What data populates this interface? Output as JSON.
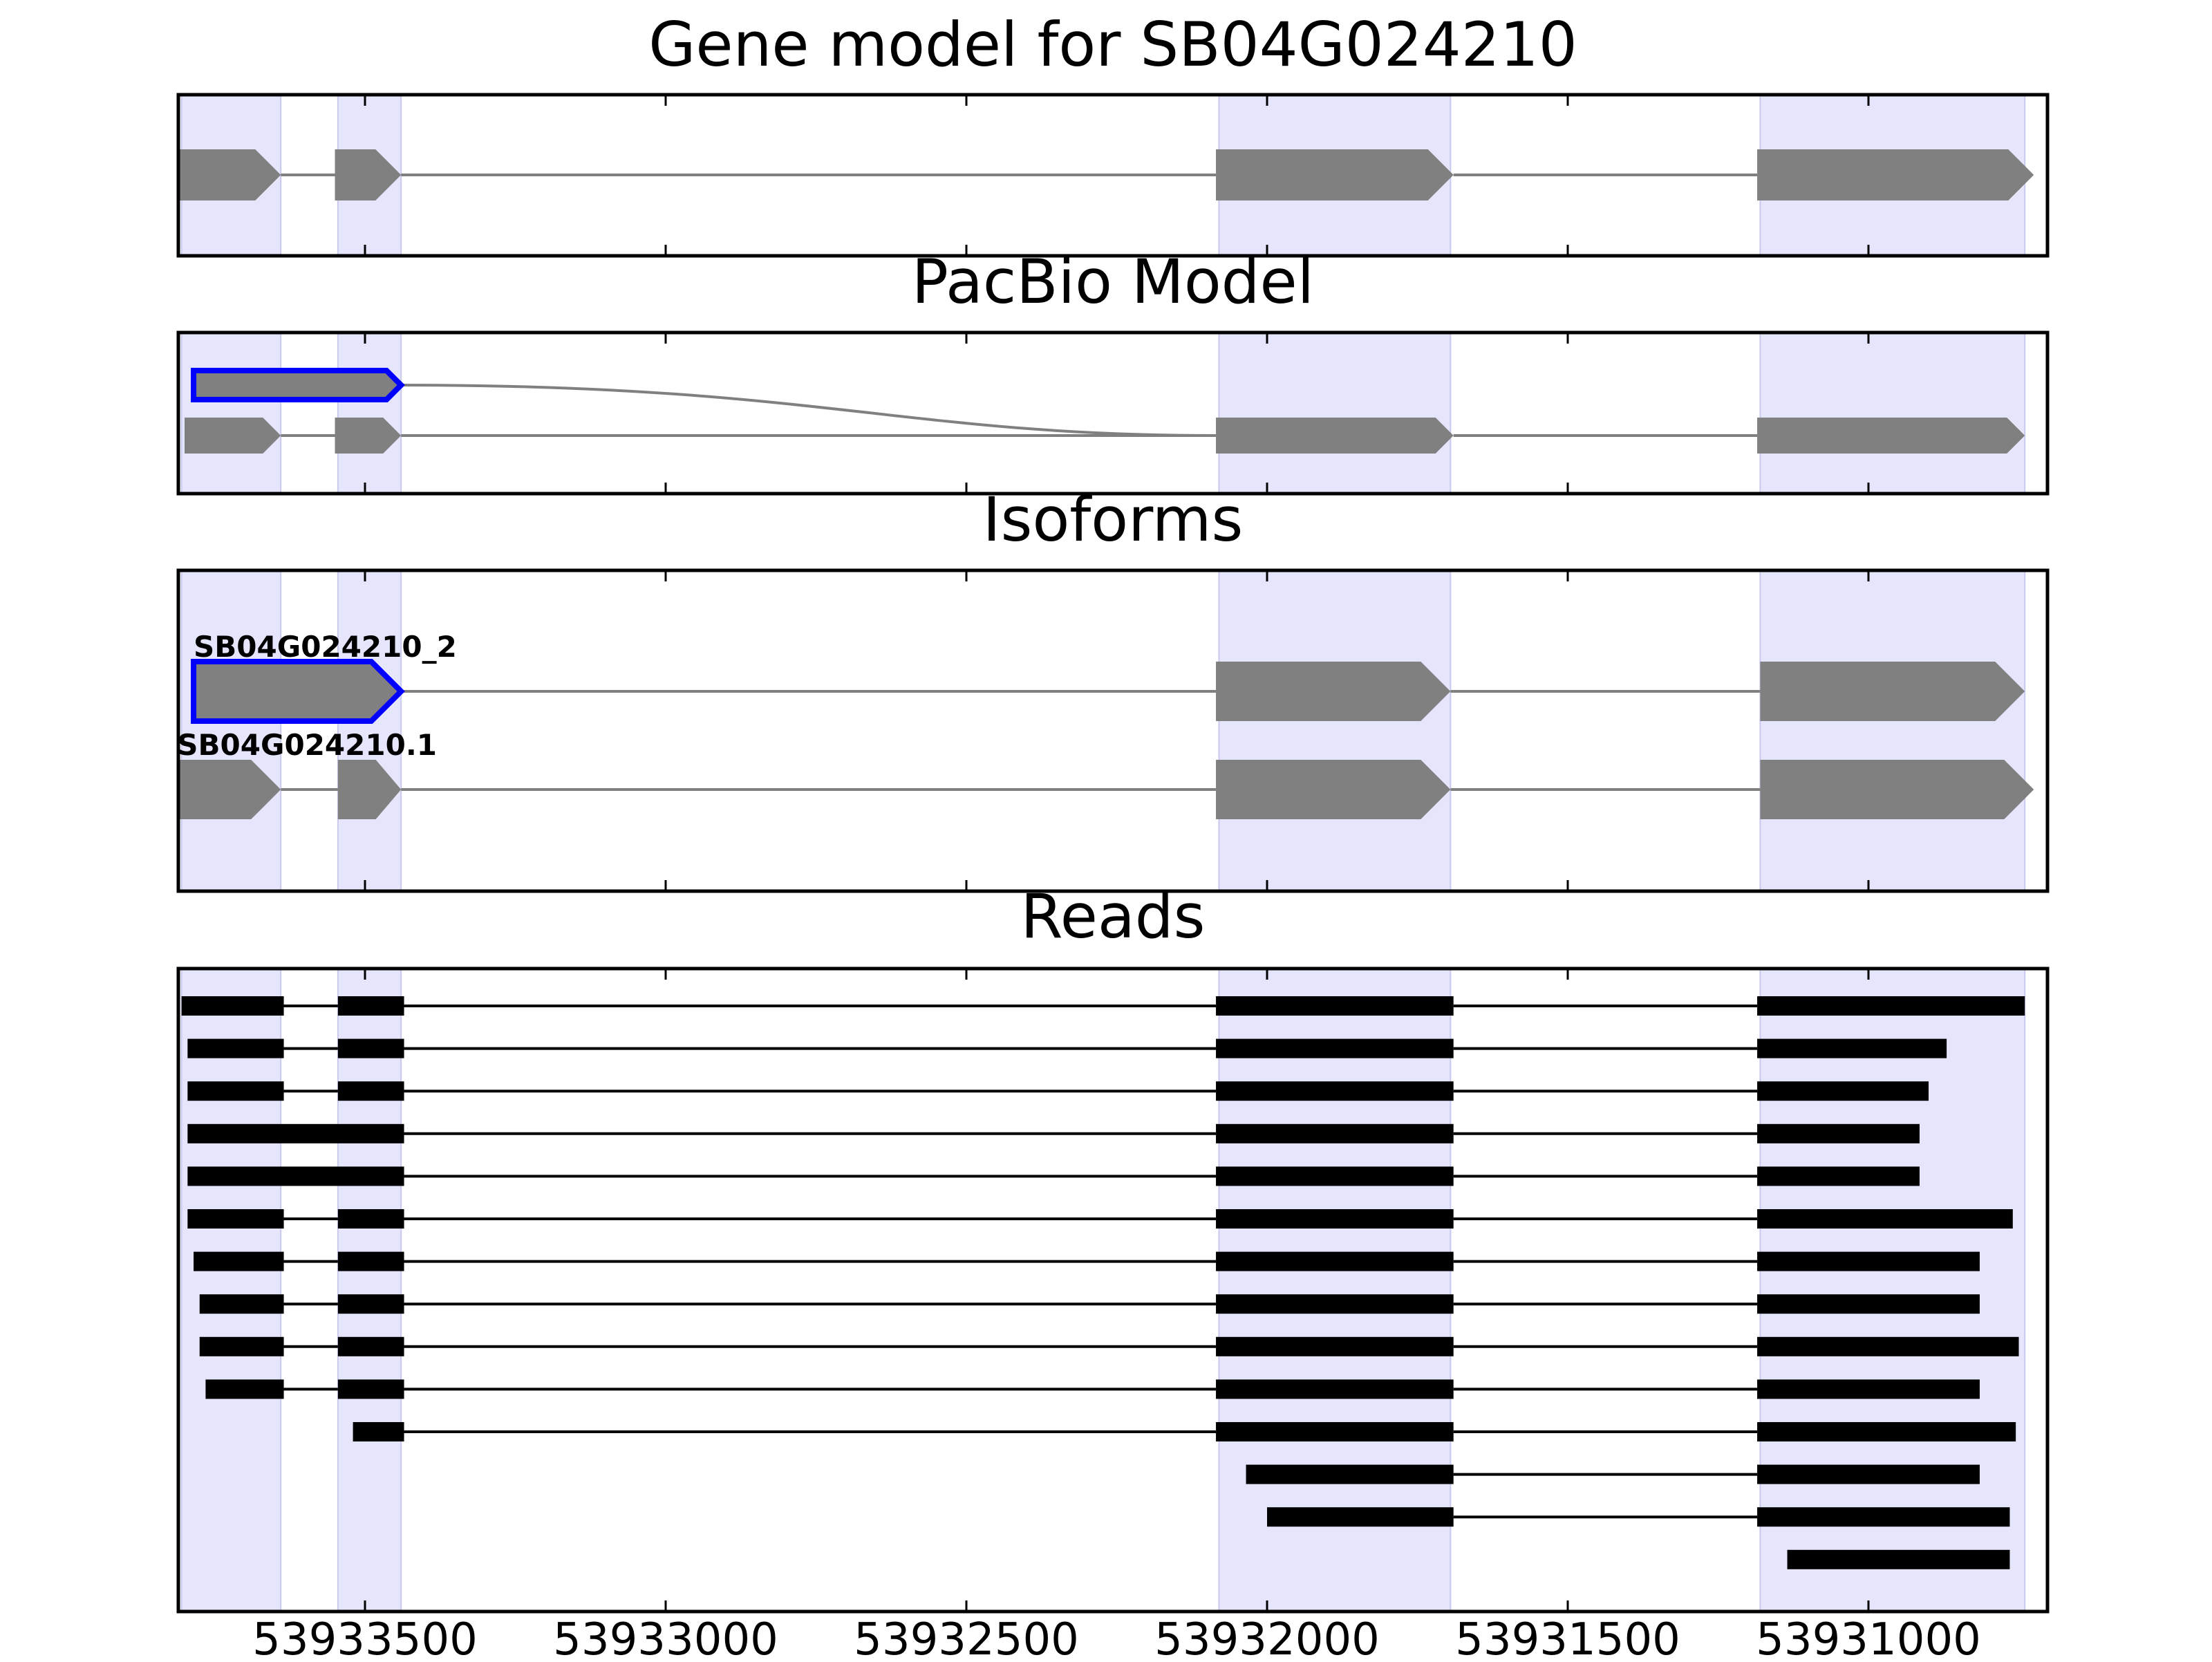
{
  "figure": {
    "colors": {
      "exon_fill": "#808080",
      "intron_line": "#808080",
      "highlight_region": "#e5e5fc",
      "selected_outline": "#0000ff",
      "read_color": "#000000",
      "frame": "#000000",
      "text": "#000000"
    }
  },
  "panels": [
    {
      "id": "gene-model",
      "title": "Gene model for SB04G024210"
    },
    {
      "id": "pacbio",
      "title": "PacBio Model"
    },
    {
      "id": "isoforms",
      "title": "Isoforms"
    },
    {
      "id": "reads",
      "title": "Reads"
    }
  ],
  "axis": {
    "orientation": "reversed",
    "ticks": [
      {
        "value": 53933500,
        "label": "53933500"
      },
      {
        "value": 53933000,
        "label": "53933000"
      },
      {
        "value": 53932500,
        "label": "53932500"
      },
      {
        "value": 53932000,
        "label": "53932000"
      },
      {
        "value": 53931500,
        "label": "53931500"
      },
      {
        "value": 53931000,
        "label": "53931000"
      }
    ]
  },
  "highlight_regions": [
    {
      "start": 53933805,
      "end": 53933640
    },
    {
      "start": 53933545,
      "end": 53933440
    },
    {
      "start": 53932080,
      "end": 53931695
    },
    {
      "start": 53931180,
      "end": 53930740
    }
  ],
  "gene_model": {
    "exons": [
      {
        "start": 53933810,
        "end": 53933640
      },
      {
        "start": 53933550,
        "end": 53933440
      },
      {
        "start": 53932085,
        "end": 53931690
      },
      {
        "start": 53931185,
        "end": 53930725
      }
    ]
  },
  "pacbio_model": {
    "selected": {
      "start": 53933785,
      "end": 53933440
    },
    "transcript": {
      "exons": [
        {
          "start": 53933800,
          "end": 53933640
        },
        {
          "start": 53933550,
          "end": 53933440
        },
        {
          "start": 53932085,
          "end": 53931690
        },
        {
          "start": 53931185,
          "end": 53930740
        }
      ]
    }
  },
  "isoforms": [
    {
      "name": "SB04G024210_2",
      "selected": true,
      "exons": [
        {
          "start": 53933785,
          "end": 53933440
        },
        {
          "start": 53932085,
          "end": 53931695
        },
        {
          "start": 53931180,
          "end": 53930740
        }
      ]
    },
    {
      "name": "SB04G024210.1",
      "selected": false,
      "exons": [
        {
          "start": 53933810,
          "end": 53933640
        },
        {
          "start": 53933545,
          "end": 53933440
        },
        {
          "start": 53932085,
          "end": 53931695
        },
        {
          "start": 53931180,
          "end": 53930725
        }
      ]
    }
  ],
  "reads": [
    {
      "exons": [
        {
          "start": 53933805,
          "end": 53933635
        },
        {
          "start": 53933545,
          "end": 53933435
        },
        {
          "start": 53932085,
          "end": 53931690
        },
        {
          "start": 53931185,
          "end": 53930740
        }
      ]
    },
    {
      "exons": [
        {
          "start": 53933795,
          "end": 53933635
        },
        {
          "start": 53933545,
          "end": 53933435
        },
        {
          "start": 53932085,
          "end": 53931690
        },
        {
          "start": 53931185,
          "end": 53930870
        }
      ]
    },
    {
      "exons": [
        {
          "start": 53933795,
          "end": 53933635
        },
        {
          "start": 53933545,
          "end": 53933435
        },
        {
          "start": 53932085,
          "end": 53931690
        },
        {
          "start": 53931185,
          "end": 53930900
        }
      ]
    },
    {
      "exons": [
        {
          "start": 53933795,
          "end": 53933435
        },
        {
          "start": 53932085,
          "end": 53931690
        },
        {
          "start": 53931185,
          "end": 53930915
        }
      ]
    },
    {
      "exons": [
        {
          "start": 53933795,
          "end": 53933435
        },
        {
          "start": 53932085,
          "end": 53931690
        },
        {
          "start": 53931185,
          "end": 53930915
        }
      ]
    },
    {
      "exons": [
        {
          "start": 53933795,
          "end": 53933635
        },
        {
          "start": 53933545,
          "end": 53933435
        },
        {
          "start": 53932085,
          "end": 53931690
        },
        {
          "start": 53931185,
          "end": 53930760
        }
      ]
    },
    {
      "exons": [
        {
          "start": 53933785,
          "end": 53933635
        },
        {
          "start": 53933545,
          "end": 53933435
        },
        {
          "start": 53932085,
          "end": 53931690
        },
        {
          "start": 53931185,
          "end": 53930815
        }
      ]
    },
    {
      "exons": [
        {
          "start": 53933775,
          "end": 53933635
        },
        {
          "start": 53933545,
          "end": 53933435
        },
        {
          "start": 53932085,
          "end": 53931690
        },
        {
          "start": 53931185,
          "end": 53930815
        }
      ]
    },
    {
      "exons": [
        {
          "start": 53933775,
          "end": 53933635
        },
        {
          "start": 53933545,
          "end": 53933435
        },
        {
          "start": 53932085,
          "end": 53931690
        },
        {
          "start": 53931185,
          "end": 53930750
        }
      ]
    },
    {
      "exons": [
        {
          "start": 53933765,
          "end": 53933635
        },
        {
          "start": 53933545,
          "end": 53933435
        },
        {
          "start": 53932085,
          "end": 53931690
        },
        {
          "start": 53931185,
          "end": 53930815
        }
      ]
    },
    {
      "exons": [
        {
          "start": 53933520,
          "end": 53933435
        },
        {
          "start": 53932085,
          "end": 53931690
        },
        {
          "start": 53931185,
          "end": 53930755
        }
      ]
    },
    {
      "exons": [
        {
          "start": 53932035,
          "end": 53931690
        },
        {
          "start": 53931185,
          "end": 53930815
        }
      ]
    },
    {
      "exons": [
        {
          "start": 53932000,
          "end": 53931690
        },
        {
          "start": 53931185,
          "end": 53930765
        }
      ]
    },
    {
      "exons": [
        {
          "start": 53931135,
          "end": 53930765
        }
      ]
    }
  ]
}
